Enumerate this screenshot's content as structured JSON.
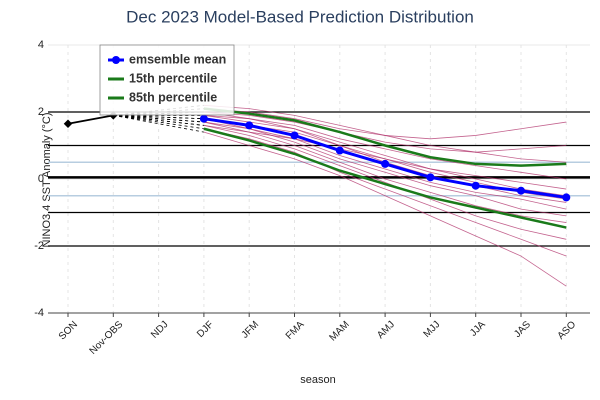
{
  "chart_data": {
    "type": "line",
    "title": "Dec 2023 Model-Based Prediction Distribution",
    "x_label": "season",
    "y_label": "NINO3.4 SST Anomaly (°C)",
    "categories": [
      "SON",
      "Nov-OBS",
      "NDJ",
      "DJF",
      "JFM",
      "FMA",
      "MAM",
      "AMJ",
      "MJJ",
      "JJA",
      "JAS",
      "ASO"
    ],
    "ylim": [
      -4,
      4
    ],
    "yticks": [
      -4,
      -2,
      0,
      2,
      4
    ],
    "grid": true,
    "reference_lines": [
      {
        "value": 2,
        "color": "#000000",
        "width": 1.2
      },
      {
        "value": 1,
        "color": "#000000",
        "width": 1.2
      },
      {
        "value": 0.05,
        "color": "#000000",
        "width": 2.5
      },
      {
        "value": -1,
        "color": "#000000",
        "width": 1.2
      },
      {
        "value": -2,
        "color": "#000000",
        "width": 1.2
      },
      {
        "value": 0.5,
        "color": "#b7cde0",
        "width": 1.5
      },
      {
        "value": -0.5,
        "color": "#b7cde0",
        "width": 1.5
      }
    ],
    "observed": {
      "color": "#000000",
      "values": [
        1.65,
        1.9,
        null,
        null,
        null,
        null,
        null,
        null,
        null,
        null,
        null,
        null
      ]
    },
    "members_color": "#b0306a",
    "members": [
      [
        null,
        null,
        null,
        1.9,
        1.7,
        1.5,
        1.1,
        0.7,
        0.3,
        0.1,
        -0.1,
        -0.3
      ],
      [
        null,
        null,
        null,
        1.7,
        1.4,
        1.0,
        0.5,
        0.0,
        -0.4,
        -0.8,
        -1.1,
        -1.3
      ],
      [
        null,
        null,
        null,
        2.0,
        1.9,
        1.7,
        1.4,
        1.1,
        0.9,
        0.8,
        0.9,
        1.0
      ],
      [
        null,
        null,
        null,
        1.6,
        1.3,
        0.9,
        0.4,
        -0.1,
        -0.6,
        -1.1,
        -1.5,
        -1.8
      ],
      [
        null,
        null,
        null,
        1.8,
        1.6,
        1.4,
        1.0,
        0.5,
        0.1,
        -0.2,
        -0.5,
        -0.7
      ],
      [
        null,
        null,
        null,
        2.2,
        2.1,
        1.9,
        1.6,
        1.3,
        1.0,
        0.8,
        0.6,
        0.5
      ],
      [
        null,
        null,
        null,
        1.5,
        1.2,
        0.8,
        0.2,
        -0.3,
        -0.8,
        -1.3,
        -1.8,
        -2.3
      ],
      [
        null,
        null,
        null,
        1.9,
        1.8,
        1.6,
        1.2,
        0.9,
        0.6,
        0.4,
        0.2,
        0.0
      ],
      [
        null,
        null,
        null,
        1.4,
        1.0,
        0.6,
        0.1,
        -0.5,
        -1.1,
        -1.7,
        -2.3,
        -3.2
      ],
      [
        null,
        null,
        null,
        1.8,
        1.5,
        1.2,
        0.7,
        0.3,
        -0.1,
        -0.4,
        -0.6,
        -0.9
      ],
      [
        null,
        null,
        null,
        2.1,
        2.0,
        1.8,
        1.5,
        1.3,
        1.2,
        1.3,
        1.5,
        1.7
      ],
      [
        null,
        null,
        null,
        1.7,
        1.5,
        1.1,
        0.6,
        0.2,
        -0.2,
        -0.5,
        -0.9,
        -1.1
      ],
      [
        null,
        null,
        null,
        1.6,
        1.4,
        1.2,
        0.9,
        0.6,
        0.3,
        0.0,
        -0.3,
        -0.5
      ],
      [
        null,
        null,
        null,
        2.0,
        1.8,
        1.5,
        1.0,
        0.6,
        0.2,
        -0.1,
        -0.4,
        -0.6
      ]
    ],
    "series": [
      {
        "name": "emsemble mean",
        "color": "#0000ff",
        "markers": true,
        "values": [
          null,
          null,
          null,
          1.8,
          1.6,
          1.3,
          0.85,
          0.45,
          0.05,
          -0.2,
          -0.35,
          -0.55
        ]
      },
      {
        "name": "15th percentile",
        "color": "#1a7a1a",
        "markers": false,
        "values": [
          null,
          null,
          null,
          1.5,
          1.15,
          0.75,
          0.25,
          -0.15,
          -0.55,
          -0.85,
          -1.15,
          -1.45
        ]
      },
      {
        "name": "85th percentile",
        "color": "#1a7a1a",
        "markers": false,
        "values": [
          null,
          null,
          null,
          2.1,
          1.95,
          1.75,
          1.4,
          1.0,
          0.65,
          0.45,
          0.4,
          0.45
        ]
      }
    ]
  }
}
